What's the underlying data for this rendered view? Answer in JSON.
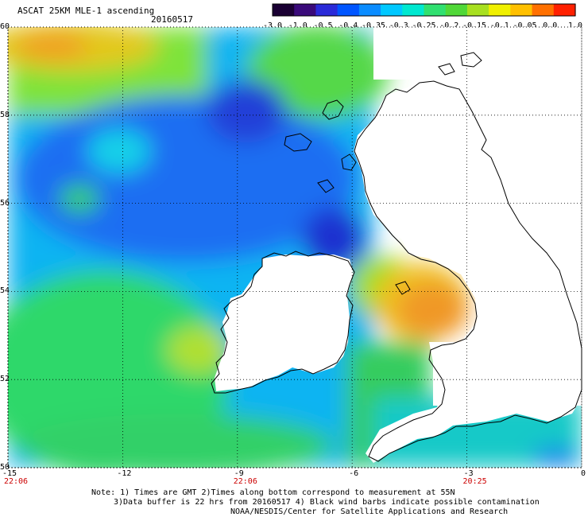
{
  "header": {
    "title": "ASCAT 25KM MLE-1 ascending",
    "date": "20160517"
  },
  "colorbar": {
    "tick_labels": [
      "-3.0",
      "-1.0",
      "-0.5",
      "-0.4",
      "-0.35",
      "-0.3",
      "-0.25",
      "-0.2",
      "-0.15",
      "-0.1",
      "-0.05",
      "0.0",
      "1.0"
    ],
    "colors": [
      "#1a0033",
      "#3a0a7a",
      "#2a2ad8",
      "#0055ff",
      "#0a8cff",
      "#00c8ff",
      "#00e8d0",
      "#30e070",
      "#50d838",
      "#a8e020",
      "#f0f000",
      "#ffc000",
      "#ff7000",
      "#ff2000"
    ]
  },
  "map": {
    "lon_range": [
      -15,
      0
    ],
    "lat_range": [
      50,
      60
    ],
    "lat_labels": [
      "60",
      "58",
      "56",
      "54",
      "52",
      "50"
    ],
    "lon_labels": [
      "-15",
      "-12",
      "-9",
      "-6",
      "-3",
      "0"
    ],
    "time_labels": [
      "22:06",
      "22:06",
      "20:25"
    ],
    "land_color": "#ffffff",
    "coast_color": "#000000",
    "grid": "dotted"
  },
  "notes": [
    "Note: 1) Times are GMT 2)Times along bottom correspond to measurement at 55N",
    "3)Data buffer is 22 hrs from 20160517 4) Black wind barbs indicate possible contamination",
    "NOAA/NESDIS/Center for Satellite Applications and Research"
  ]
}
